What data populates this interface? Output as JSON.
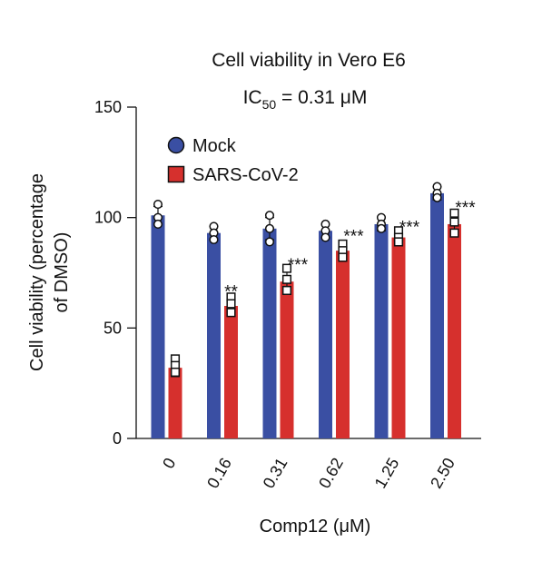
{
  "chart_data": {
    "type": "bar",
    "title": "Cell viability in Vero E6",
    "subtitle_main": "IC",
    "subtitle_sub": "50",
    "subtitle_rest": " = 0.31 μM",
    "xlabel": "Comp12 (μM)",
    "ylabel_line1": "Cell viability (percentage",
    "ylabel_line2": "of DMSO)",
    "ylim": [
      0,
      150
    ],
    "yticks": [
      "0",
      "50",
      "100",
      "150"
    ],
    "ytick_values": [
      0,
      50,
      100,
      150
    ],
    "categories": [
      "0",
      "0.16",
      "0.31",
      "0.62",
      "1.25",
      "2.50"
    ],
    "legend_position": "top-left",
    "series": [
      {
        "name": "Mock",
        "color": "#3a4fa3",
        "marker": "circle",
        "values": [
          101,
          93,
          95,
          94,
          97,
          111
        ],
        "errors": [
          4,
          3,
          5,
          3,
          3,
          3
        ],
        "points": [
          [
            106,
            100,
            97
          ],
          [
            96,
            93,
            90
          ],
          [
            101,
            95,
            89
          ],
          [
            97,
            94,
            91
          ],
          [
            100,
            97,
            95
          ],
          [
            114,
            111,
            109
          ]
        ]
      },
      {
        "name": "SARS-CoV-2",
        "color": "#d6302d",
        "marker": "square",
        "values": [
          32,
          60,
          71,
          85,
          91,
          97
        ],
        "errors": [
          4,
          4,
          5,
          4,
          2,
          5
        ],
        "points": [
          [
            36,
            33,
            30
          ],
          [
            64,
            61,
            57
          ],
          [
            77,
            72,
            67
          ],
          [
            88,
            85,
            82
          ],
          [
            94,
            91,
            89
          ],
          [
            102,
            98,
            93
          ]
        ]
      }
    ],
    "significance": [
      "",
      "**",
      "***",
      "***",
      "***",
      "***"
    ]
  }
}
